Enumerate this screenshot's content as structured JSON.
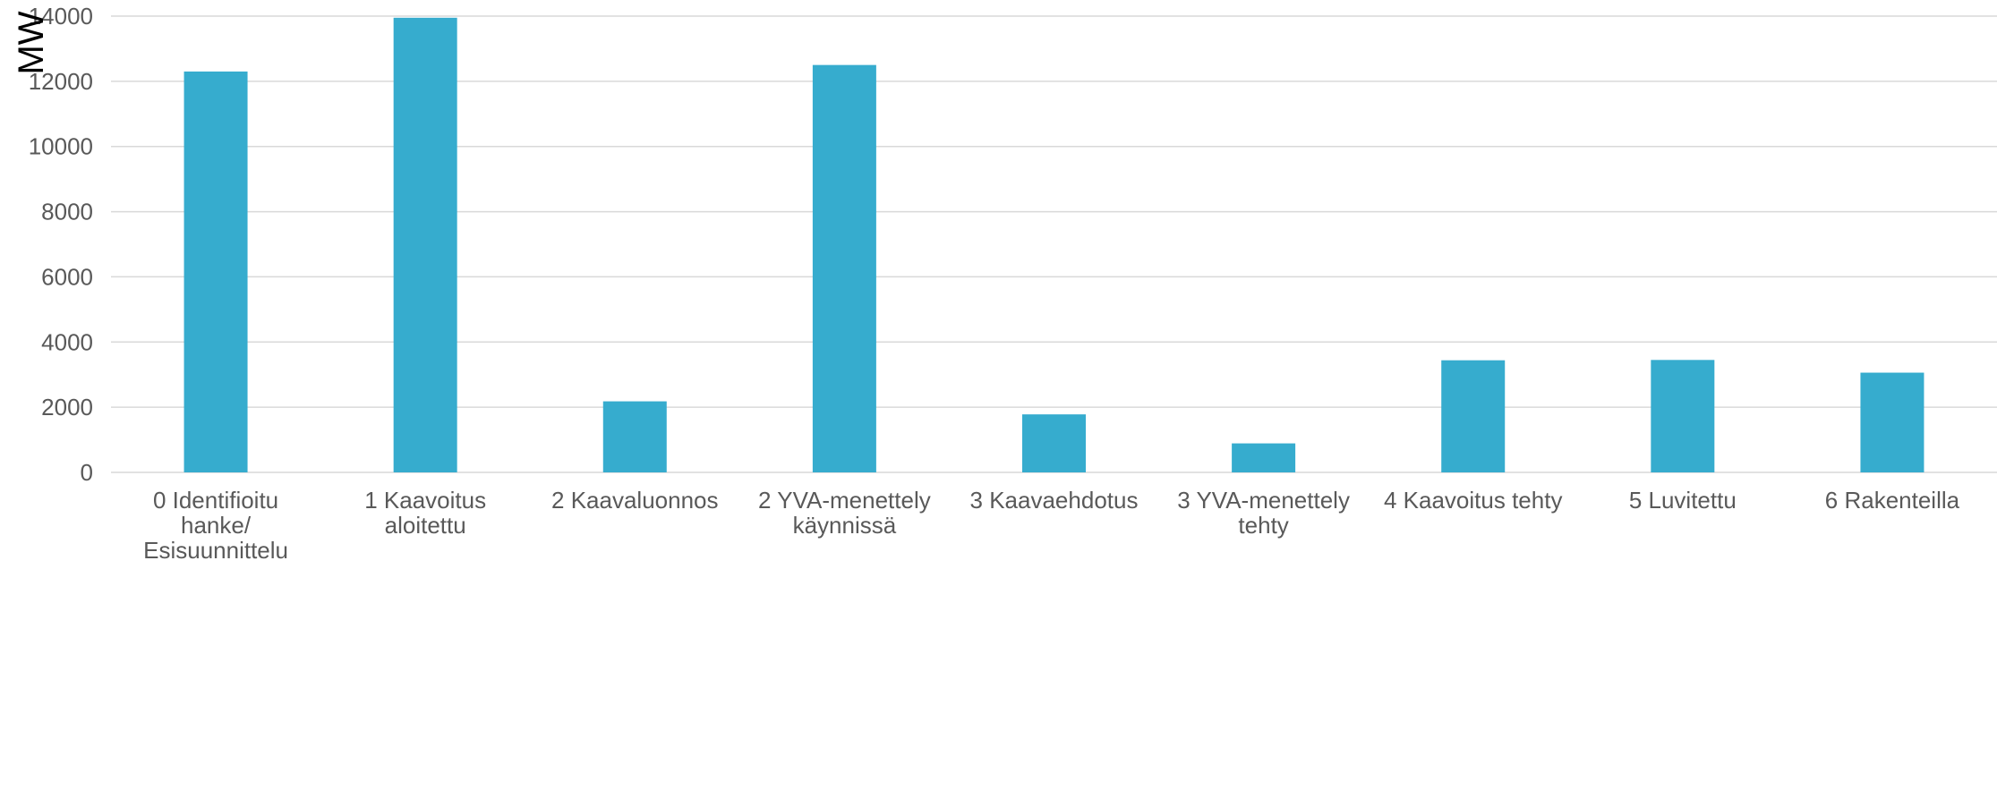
{
  "chart_data": {
    "type": "bar",
    "title": "",
    "xlabel": "",
    "ylabel": "MW",
    "ylim": [
      0,
      14000
    ],
    "yticks": [
      0,
      2000,
      4000,
      6000,
      8000,
      10000,
      12000,
      14000
    ],
    "grid": true,
    "legend": "none",
    "bar_color": "#36ACCE",
    "categories": [
      [
        "0 Identifioitu",
        "hanke/",
        "Esisuunnittelu"
      ],
      [
        "1 Kaavoitus",
        "aloitettu"
      ],
      [
        "2 Kaavaluonnos"
      ],
      [
        "2 YVA-menettely",
        "käynnissä"
      ],
      [
        "3 Kaavaehdotus"
      ],
      [
        "3 YVA-menettely",
        "tehty"
      ],
      [
        "4 Kaavoitus tehty"
      ],
      [
        "5 Luvitettu"
      ],
      [
        "6 Rakenteilla"
      ]
    ],
    "values": [
      12300,
      13950,
      2180,
      12500,
      1780,
      890,
      3440,
      3450,
      3060
    ]
  }
}
